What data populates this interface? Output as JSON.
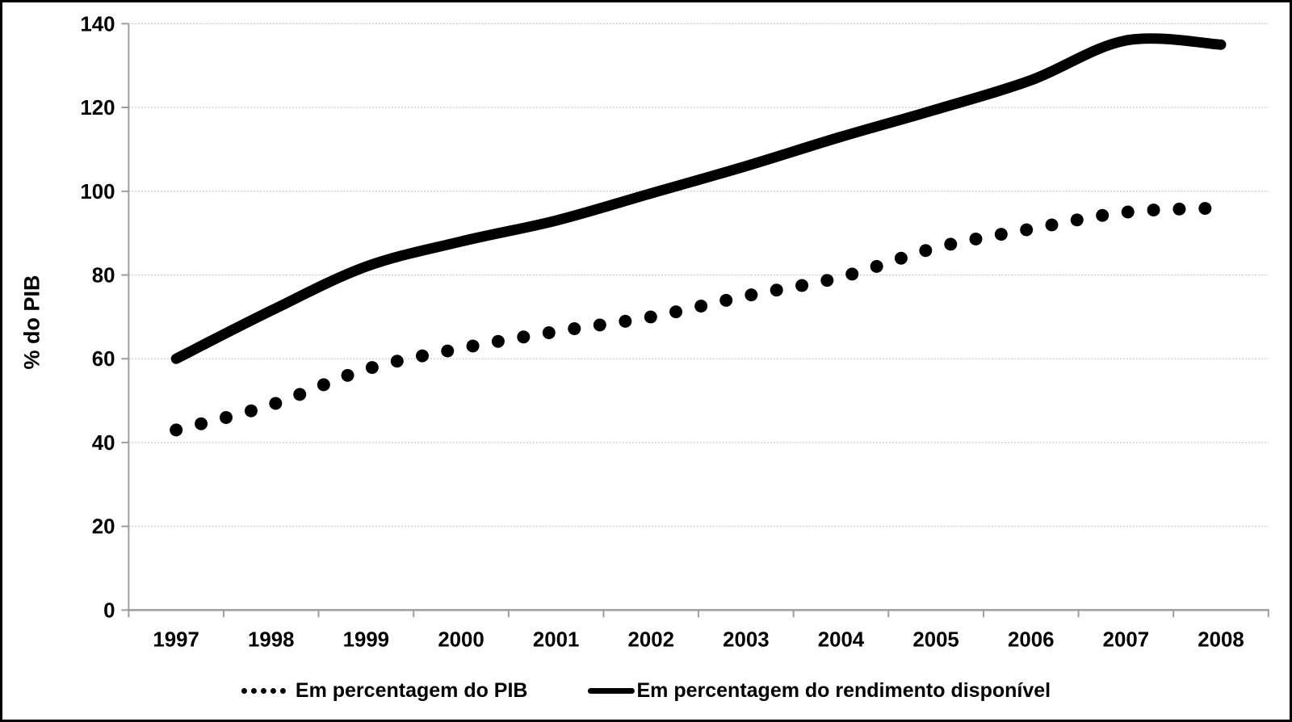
{
  "chart_data": {
    "type": "line",
    "title": "",
    "xlabel": "",
    "ylabel": "% do PIB",
    "categories": [
      "1997",
      "1998",
      "1999",
      "2000",
      "2001",
      "2002",
      "2003",
      "2004",
      "2005",
      "2006",
      "2007",
      "2008"
    ],
    "series": [
      {
        "name": "Em percentagem do PIB",
        "line_style": "dotted",
        "color": "#000000",
        "values": [
          43,
          49,
          57.5,
          62.5,
          66.5,
          70,
          75,
          79.5,
          86.5,
          91,
          95,
          96
        ]
      },
      {
        "name": "Em percentagem do rendimento disponível",
        "line_style": "solid",
        "color": "#000000",
        "values": [
          60,
          71.5,
          82,
          88,
          93,
          99.5,
          106,
          113,
          119.5,
          126.5,
          136,
          135
        ]
      }
    ],
    "ylim": [
      0,
      140
    ],
    "yticks": [
      0,
      20,
      40,
      60,
      80,
      100,
      120,
      140
    ],
    "grid": "horizontal",
    "legend_position": "bottom",
    "smooth_lines": true,
    "colors": {
      "series": "#000000",
      "grid": "#c9c9c9",
      "axis": "#9e9e9e",
      "text": "#000000",
      "background": "#ffffff",
      "border": "#000000"
    }
  }
}
